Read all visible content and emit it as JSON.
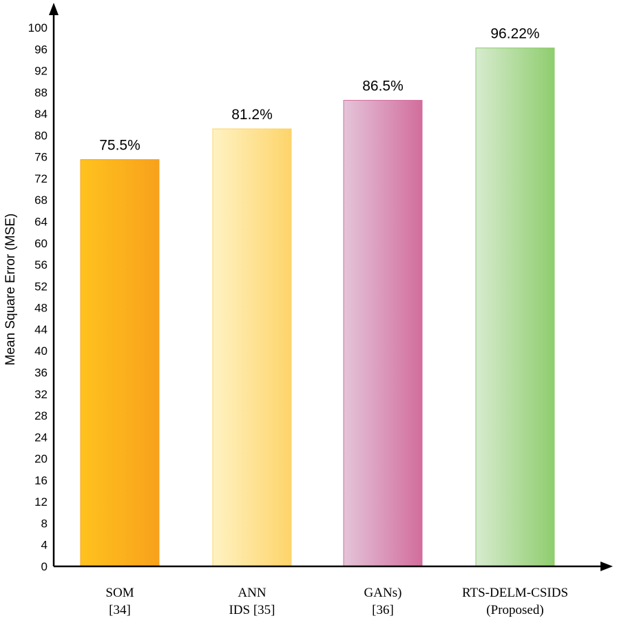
{
  "chart_data": {
    "type": "bar",
    "title": "",
    "xlabel": "",
    "ylabel": "Mean Square Error (MSE)",
    "ylim": [
      0,
      100
    ],
    "yticks": [
      0,
      4,
      8,
      12,
      16,
      20,
      24,
      28,
      32,
      36,
      40,
      44,
      48,
      52,
      56,
      60,
      64,
      68,
      72,
      76,
      80,
      84,
      88,
      92,
      96,
      100
    ],
    "categories": [
      [
        "SOM",
        "[34]"
      ],
      [
        "ANN",
        "IDS [35]"
      ],
      [
        "GANs)",
        "[36]"
      ],
      [
        "RTS-DELM-CSIDS",
        "(Proposed)"
      ]
    ],
    "values": [
      75.5,
      81.2,
      86.5,
      96.22
    ],
    "value_labels": [
      "75.5%",
      "81.2%",
      "86.5%",
      "96.22%"
    ],
    "colors": [
      [
        "#ffc21e",
        "#f8a11c"
      ],
      [
        "#fff2c2",
        "#fdd46a"
      ],
      [
        "#e4c4d9",
        "#d26d9c"
      ],
      [
        "#d7ebcf",
        "#8fcd6e"
      ]
    ],
    "grid": false,
    "legend": "none"
  }
}
